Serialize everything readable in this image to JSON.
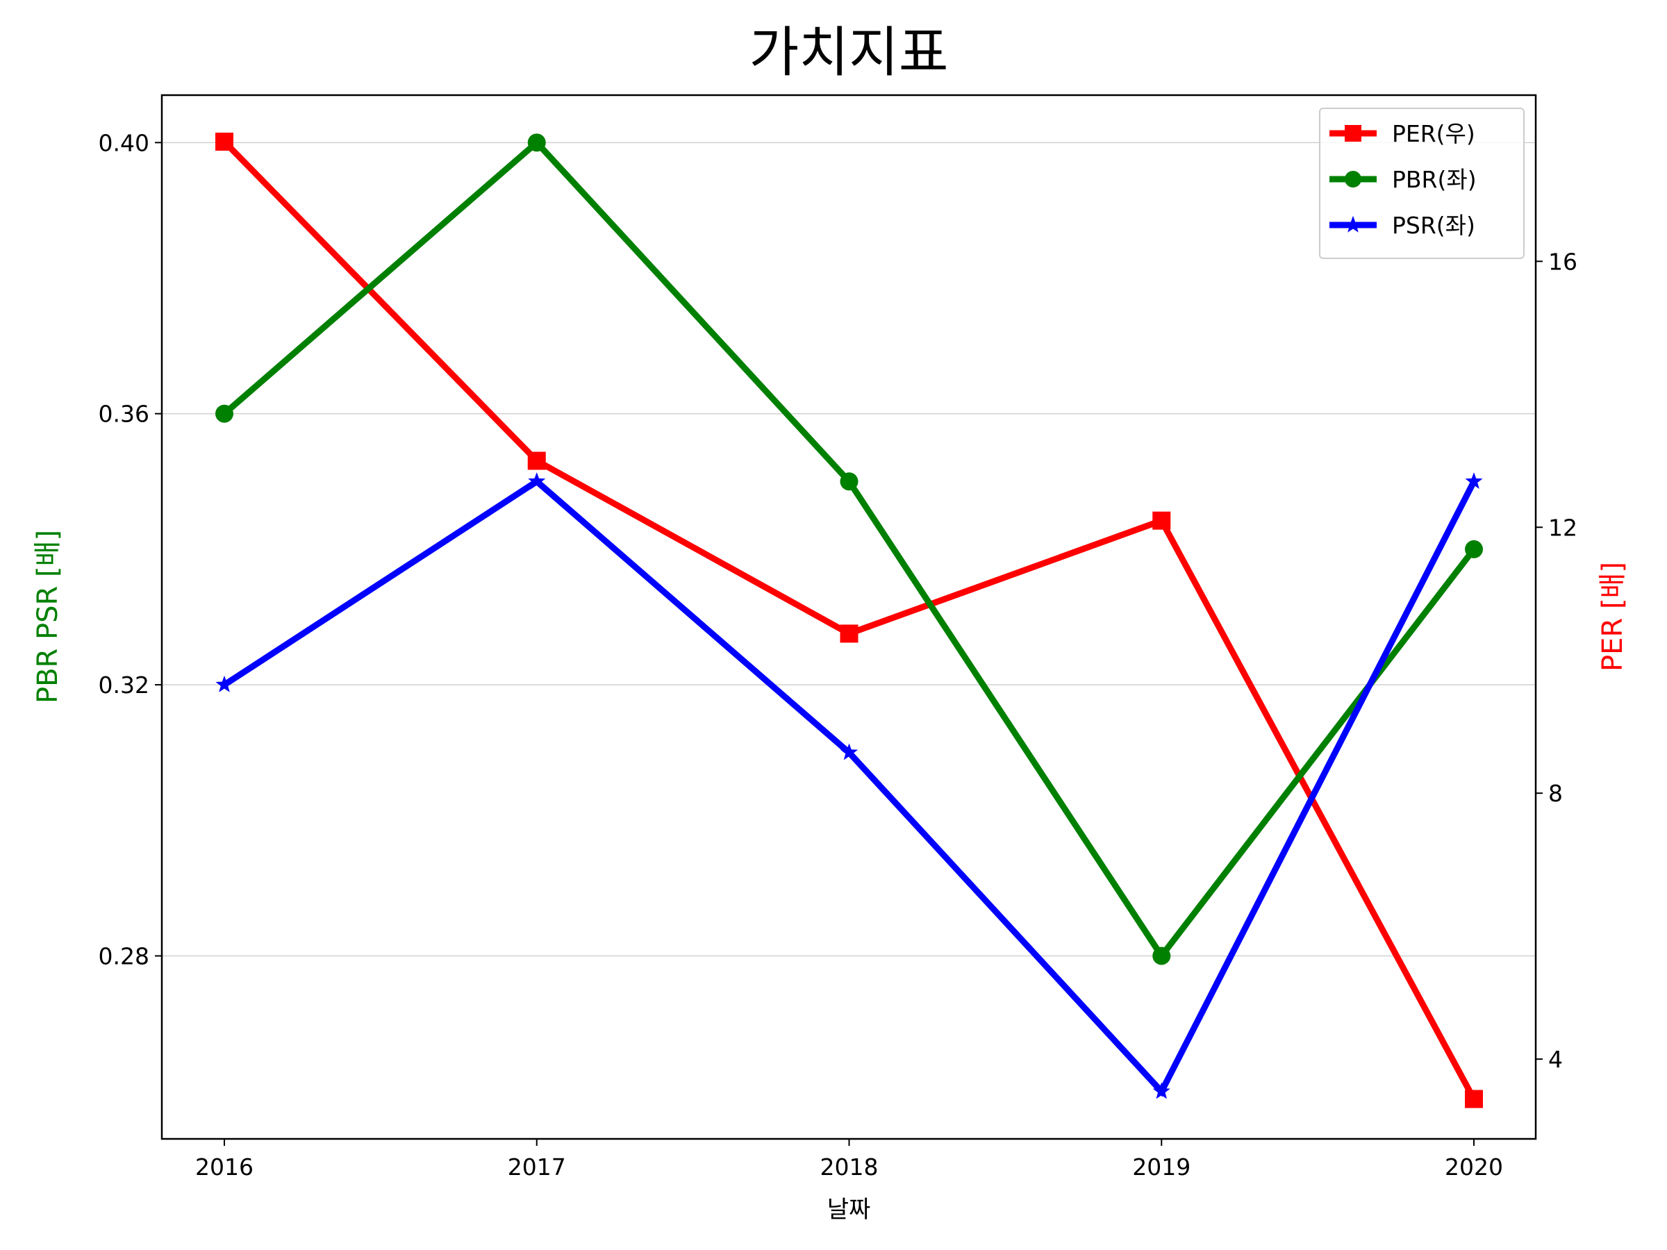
{
  "chart_data": {
    "type": "line",
    "title": "가치지표",
    "xlabel": "날짜",
    "ylabel_left": "PBR PSR [배]",
    "ylabel_right": "PER [배]",
    "ylabel_left_color": "#008000",
    "ylabel_right_color": "#ff0000",
    "x": [
      "2016",
      "2017",
      "2018",
      "2019",
      "2020"
    ],
    "y_left": {
      "ylim": [
        0.253,
        0.407
      ],
      "ticks": [
        0.28,
        0.32,
        0.36,
        0.4
      ],
      "tick_labels": [
        "0.28",
        "0.32",
        "0.36",
        "0.40"
      ],
      "grid": true
    },
    "y_right": {
      "ylim": [
        2.8,
        18.5
      ],
      "ticks": [
        4,
        8,
        12,
        16
      ],
      "tick_labels": [
        "4",
        "8",
        "12",
        "16"
      ]
    },
    "series": [
      {
        "name": "PER(우)",
        "axis": "right",
        "color": "#ff0000",
        "marker": "square",
        "values": [
          17.8,
          13.0,
          10.4,
          12.1,
          3.4
        ]
      },
      {
        "name": "PBR(좌)",
        "axis": "left",
        "color": "#008000",
        "marker": "circle",
        "values": [
          0.36,
          0.4,
          0.35,
          0.28,
          0.34
        ]
      },
      {
        "name": "PSR(좌)",
        "axis": "left",
        "color": "#0000ff",
        "marker": "star",
        "values": [
          0.32,
          0.35,
          0.31,
          0.26,
          0.35
        ]
      }
    ],
    "legend_position": "top-right"
  }
}
